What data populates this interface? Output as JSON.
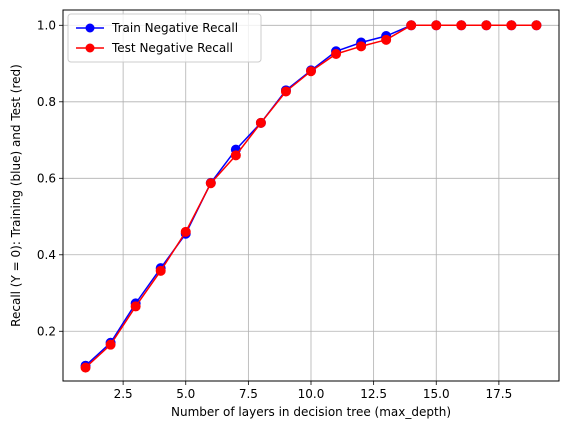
{
  "chart_data": {
    "type": "line",
    "title": "",
    "xlabel": "Number of layers in decision tree (max_depth)",
    "ylabel": "Recall (Y = 0): Training (blue) and Test (red)",
    "xlim": [
      0.1,
      19.9
    ],
    "ylim": [
      0.07,
      1.04
    ],
    "xticks": [
      2.5,
      5.0,
      7.5,
      10.0,
      12.5,
      15.0,
      17.5
    ],
    "xtick_labels": [
      "2.5",
      "5.0",
      "7.5",
      "10.0",
      "12.5",
      "15.0",
      "17.5"
    ],
    "yticks": [
      0.2,
      0.4,
      0.6,
      0.8,
      1.0
    ],
    "ytick_labels": [
      "0.2",
      "0.4",
      "0.6",
      "0.8",
      "1.0"
    ],
    "grid": true,
    "legend_position": "top-left",
    "x": [
      1,
      2,
      3,
      4,
      5,
      6,
      7,
      8,
      9,
      10,
      11,
      12,
      13,
      14,
      15,
      16,
      17,
      18,
      19
    ],
    "series": [
      {
        "name": "Train Negative Recall",
        "color": "#0000ff",
        "values": [
          0.11,
          0.17,
          0.273,
          0.365,
          0.455,
          0.588,
          0.675,
          0.745,
          0.83,
          0.882,
          0.932,
          0.955,
          0.972,
          1.0,
          1.0,
          1.0,
          1.0,
          1.0,
          1.0
        ]
      },
      {
        "name": "Test Negative Recall",
        "color": "#ff0000",
        "values": [
          0.105,
          0.165,
          0.265,
          0.358,
          0.46,
          0.587,
          0.66,
          0.745,
          0.827,
          0.88,
          0.925,
          0.945,
          0.962,
          1.0,
          1.0,
          1.0,
          1.0,
          1.0,
          1.0
        ]
      }
    ]
  }
}
